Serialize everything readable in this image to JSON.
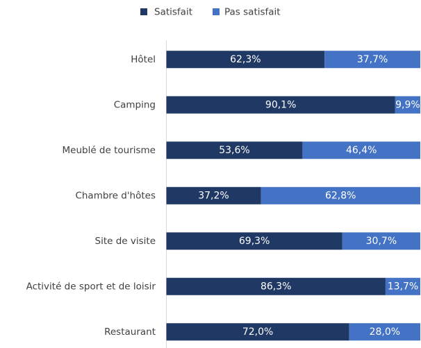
{
  "chart_data": {
    "type": "stacked_barh",
    "categories": [
      "Hôtel",
      "Camping",
      "Meublé de tourisme",
      "Chambre d'hôtes",
      "Site de visite",
      "Activité de sport et de loisir",
      "Restaurant"
    ],
    "series": [
      {
        "name": "Satisfait",
        "color": "#203864",
        "values": [
          62.3,
          90.1,
          53.6,
          37.2,
          69.3,
          86.3,
          72.0
        ],
        "value_labels": [
          "62,3%",
          "90,1%",
          "53,6%",
          "37,2%",
          "69,3%",
          "86,3%",
          "72,0%"
        ]
      },
      {
        "name": "Pas satisfait",
        "color": "#4472c4",
        "values": [
          37.7,
          9.9,
          46.4,
          62.8,
          30.7,
          13.7,
          28.0
        ],
        "value_labels": [
          "37,7%",
          "9,9%",
          "46,4%",
          "62,8%",
          "30,7%",
          "13,7%",
          "28,0%"
        ]
      }
    ],
    "xlim": [
      0,
      100
    ],
    "legend": "top"
  }
}
